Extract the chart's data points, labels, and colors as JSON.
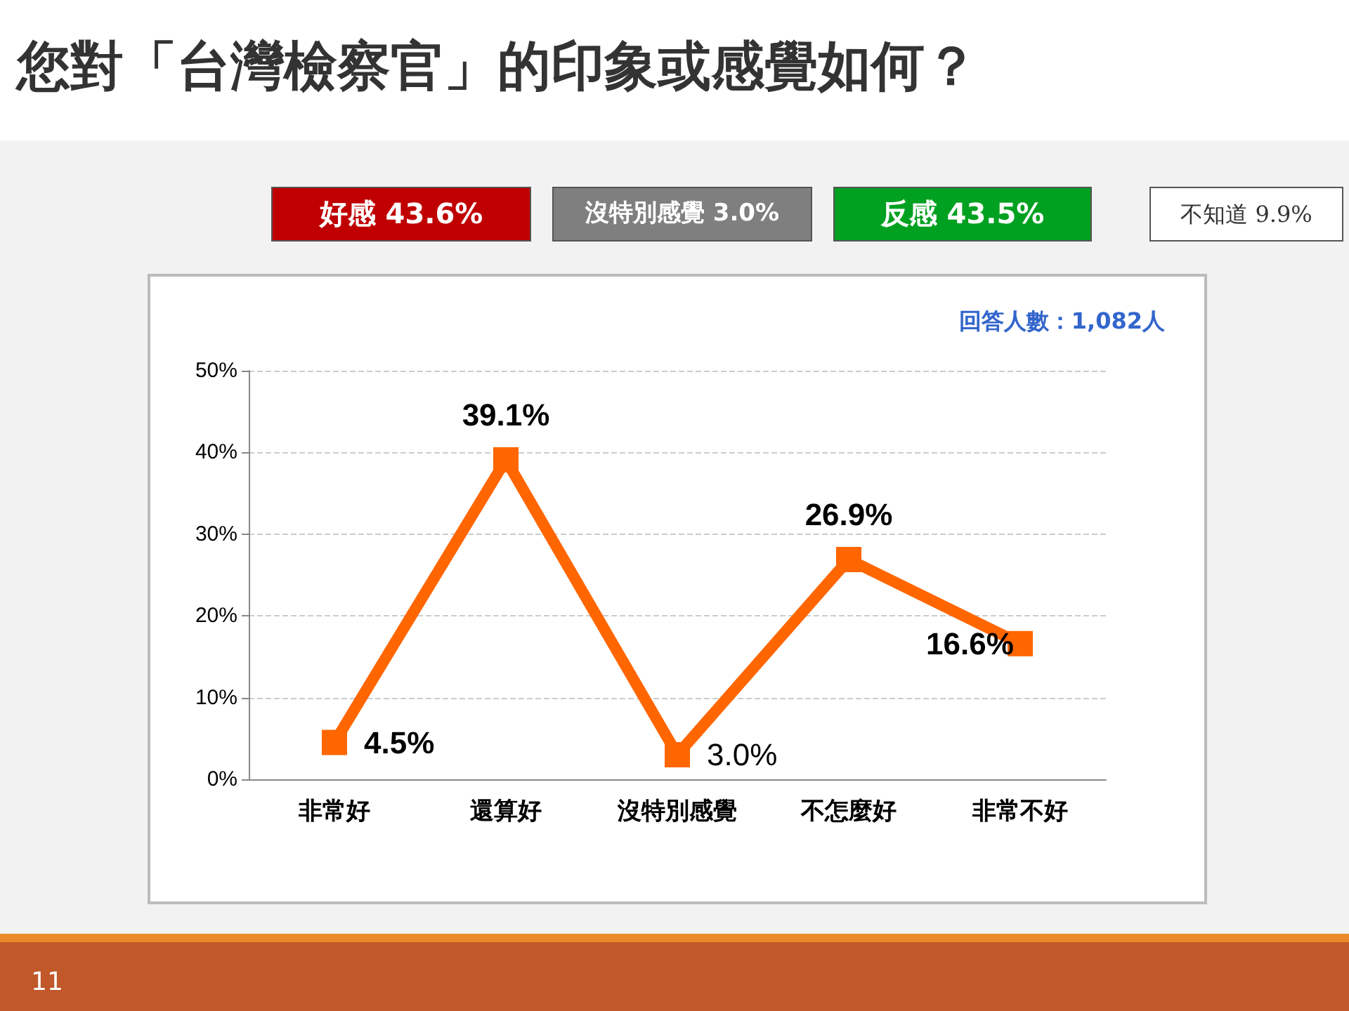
{
  "chart_data": {
    "type": "line",
    "title": "您對「台灣檢察官」的印象或感覺如何？",
    "categories": [
      "非常好",
      "還算好",
      "沒特別感覺",
      "不怎麼好",
      "非常不好"
    ],
    "series": [
      {
        "color": "#ff6600",
        "values": [
          4.5,
          39.1,
          3.0,
          26.9,
          16.6
        ],
        "value_labels": [
          "4.5%",
          "39.1%",
          "3.0%",
          "26.9%",
          "16.6%"
        ]
      }
    ],
    "ylim": [
      0,
      50
    ],
    "yticks": [
      {
        "value": 0,
        "label": "0%"
      },
      {
        "value": 10,
        "label": "10%"
      },
      {
        "value": 20,
        "label": "20%"
      },
      {
        "value": 30,
        "label": "30%"
      },
      {
        "value": 40,
        "label": "40%"
      },
      {
        "value": 50,
        "label": "50%"
      }
    ],
    "grid": "y",
    "marker": "square",
    "line_style": "solid",
    "annotations": [
      "好感 43.6%",
      "沒特別感覺 3.0%",
      "反感 43.5%",
      "不知道 9.9%",
      "回答人數：1,082人",
      "11"
    ]
  }
}
